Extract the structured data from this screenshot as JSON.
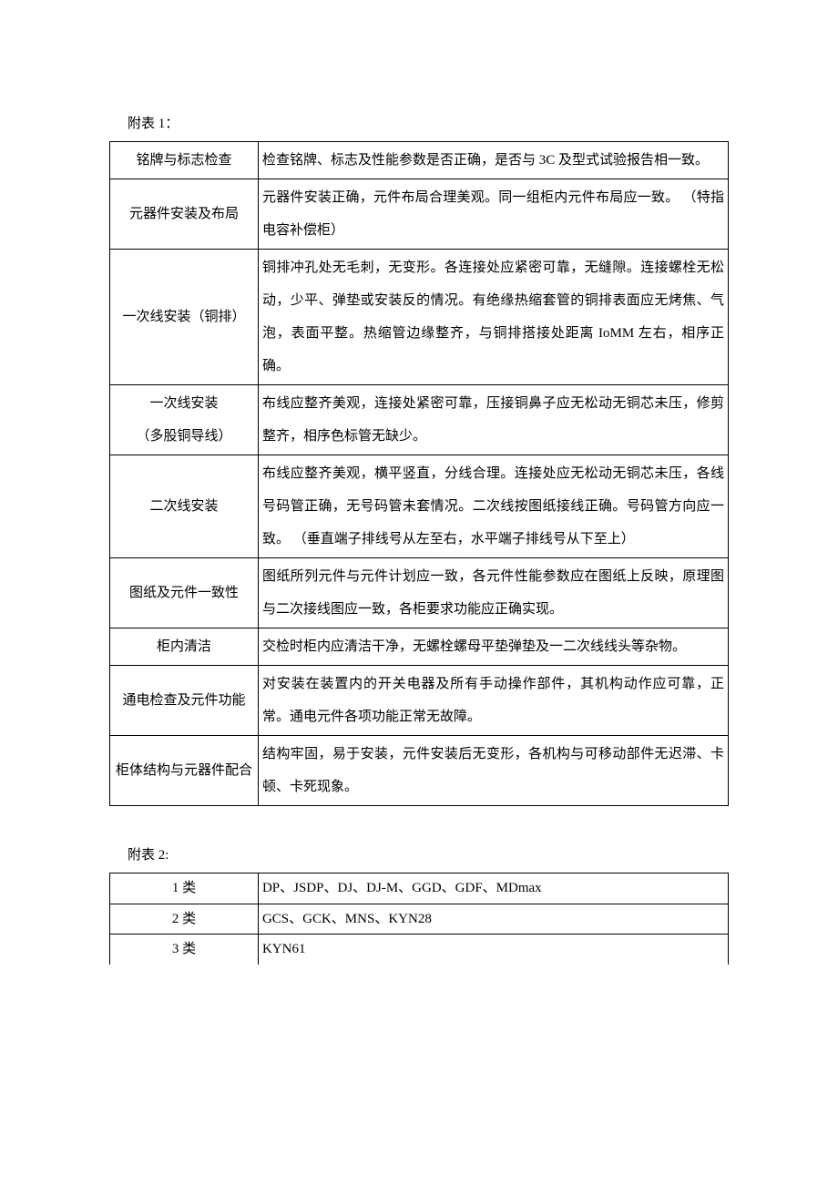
{
  "table1": {
    "caption": "附表 1：",
    "rows": [
      {
        "label": "铭牌与标志检查",
        "desc": "检查铭牌、标志及性能参数是否正确，是否与 3C 及型式试验报告相一致。"
      },
      {
        "label": "元器件安装及布局",
        "desc": "元器件安装正确，元件布局合理美观。同一组柜内元件布局应一致。 （特指电容补偿柜）"
      },
      {
        "label": "一次线安装（铜排）",
        "desc": "铜排冲孔处无毛刺，无变形。各连接处应紧密可靠，无缝隙。连接螺栓无松动，少平、弹垫或安装反的情况。有绝缘热缩套管的铜排表面应无烤焦、气泡，表面平整。热缩管边缘整齐，与铜排搭接处距离 IoMM 左右，相序正确。"
      },
      {
        "label_line1": "一次线安装",
        "label_line2": "（多股铜导线）",
        "desc": "布线应整齐美观，连接处紧密可靠，压接铜鼻子应无松动无铜芯未压，修剪整齐，相序色标管无缺少。"
      },
      {
        "label": "二次线安装",
        "desc": "布线应整齐美观，横平竖直，分线合理。连接处应无松动无铜芯未压，各线号码管正确，无号码管未套情况。二次线按图纸接线正确。号码管方向应一致。 （垂直端子排线号从左至右，水平端子排线号从下至上）"
      },
      {
        "label": "图纸及元件一致性",
        "desc": "图纸所列元件与元件计划应一致，各元件性能参数应在图纸上反映，原理图与二次接线图应一致，各柜要求功能应正确实现。",
        "pad_top": true
      },
      {
        "label": "柜内清洁",
        "desc": "交检时柜内应清洁干净，无螺栓螺母平垫弹垫及一二次线线头等杂物。"
      },
      {
        "label": "通电检查及元件功能",
        "desc": "对安装在装置内的开关电器及所有手动操作部件，其机构动作应可靠，正常。通电元件各项功能正常无故障。"
      },
      {
        "label": "柜体结构与元器件配合",
        "desc": "结构牢固，易于安装，元件安装后无变形，各机构与可移动部件无迟滞、卡顿、卡死现象。"
      }
    ]
  },
  "table2": {
    "caption": "附表 2:",
    "rows": [
      {
        "label": "1 类",
        "desc": "DP、JSDP、DJ、DJ-M、GGD、GDF、MDmax"
      },
      {
        "label": "2 类",
        "desc": "GCS、GCK、MNS、KYN28"
      },
      {
        "label": "3 类",
        "desc": "KYN61"
      }
    ]
  },
  "style": {
    "font_family": "SimSun",
    "font_size_pt": 11,
    "text_color": "#000000",
    "border_color": "#000000",
    "background_color": "#ffffff",
    "col_label_width_pct": 24,
    "col_desc_width_pct": 76,
    "line_height": 2.2
  }
}
